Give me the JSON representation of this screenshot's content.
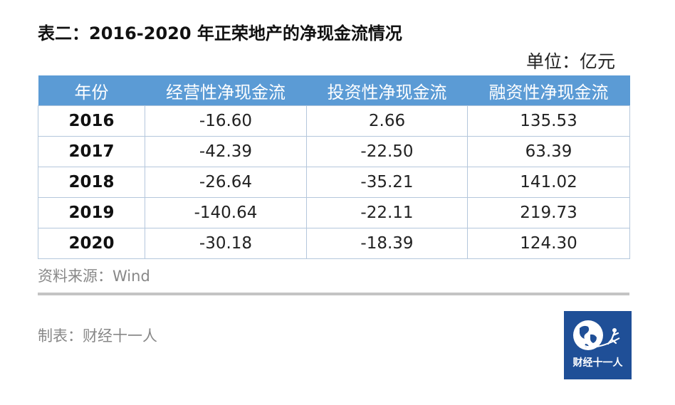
{
  "title": "表二：2016-2020 年正荣地产的净现金流情况",
  "unit": "单位：亿元",
  "table": {
    "headers": [
      "年份",
      "经营性净现金流",
      "投资性净现金流",
      "融资性净现金流"
    ],
    "rows": [
      {
        "year": "2016",
        "operating": "-16.60",
        "investing": "2.66",
        "financing": "135.53"
      },
      {
        "year": "2017",
        "operating": "-42.39",
        "investing": "-22.50",
        "financing": "63.39"
      },
      {
        "year": "2018",
        "operating": "-26.64",
        "investing": "-35.21",
        "financing": "141.02"
      },
      {
        "year": "2019",
        "operating": "-140.64",
        "investing": "-22.11",
        "financing": "219.73"
      },
      {
        "year": "2020",
        "operating": "-30.18",
        "investing": "-18.39",
        "financing": "124.30"
      }
    ]
  },
  "source": "资料来源：Wind",
  "maker": "制表：财经十一人",
  "logo": {
    "text": "财经十一人",
    "background": "#1f4f97",
    "icon": "globe-runner-icon"
  },
  "colors": {
    "header_bg": "#5b9bd5",
    "header_text": "#ffffff",
    "grid": "#b4c7dc",
    "muted_text": "#888888",
    "divider": "#c4c4c4"
  }
}
